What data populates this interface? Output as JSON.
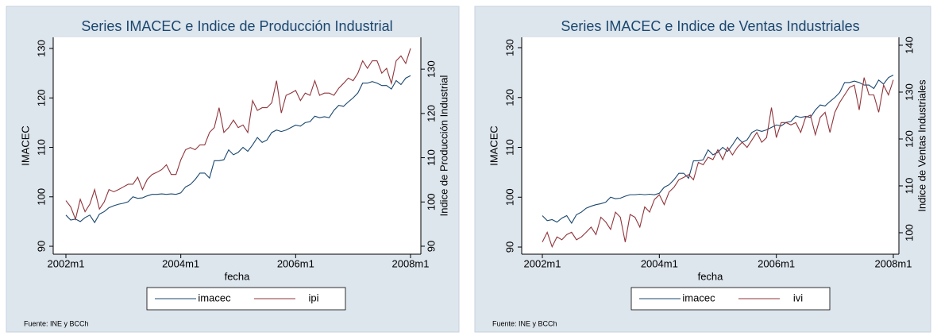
{
  "chart_data": [
    {
      "type": "line",
      "title": "Series IMACEC e Indice de Producción Industrial",
      "ylabel": "IMACEC",
      "y2label": "Indice de Producción Industrial",
      "xlabel": "fecha",
      "note": "Fuente: INE y BCCh",
      "x": [
        "2002m1",
        "2002m2",
        "2002m3",
        "2002m4",
        "2002m5",
        "2002m6",
        "2002m7",
        "2002m8",
        "2002m9",
        "2002m10",
        "2002m11",
        "2002m12",
        "2003m1",
        "2003m2",
        "2003m3",
        "2003m4",
        "2003m5",
        "2003m6",
        "2003m7",
        "2003m8",
        "2003m9",
        "2003m10",
        "2003m11",
        "2003m12",
        "2004m1",
        "2004m2",
        "2004m3",
        "2004m4",
        "2004m5",
        "2004m6",
        "2004m7",
        "2004m8",
        "2004m9",
        "2004m10",
        "2004m11",
        "2004m12",
        "2005m1",
        "2005m2",
        "2005m3",
        "2005m4",
        "2005m5",
        "2005m6",
        "2005m7",
        "2005m8",
        "2005m9",
        "2005m10",
        "2005m11",
        "2005m12",
        "2006m1",
        "2006m2",
        "2006m3",
        "2006m4",
        "2006m5",
        "2006m6",
        "2006m7",
        "2006m8",
        "2006m9",
        "2006m10",
        "2006m11",
        "2006m12",
        "2007m1",
        "2007m2",
        "2007m3",
        "2007m4",
        "2007m5",
        "2007m6",
        "2007m7",
        "2007m8",
        "2007m9",
        "2007m10",
        "2007m11",
        "2007m12",
        "2008m1"
      ],
      "xticks": [
        "2002m1",
        "2004m1",
        "2006m1",
        "2008m1"
      ],
      "ylim": [
        88.4,
        132.25
      ],
      "yticks": [
        90,
        100,
        110,
        120,
        130
      ],
      "y2lim": [
        88.2,
        137.2
      ],
      "y2ticks": [
        90,
        100,
        110,
        120,
        130
      ],
      "series": [
        {
          "name": "imacec",
          "color": "#1a476f",
          "values": [
            96.3,
            95.3,
            95.5,
            95.0,
            95.8,
            96.3,
            94.8,
            96.5,
            97.0,
            97.8,
            98.2,
            98.5,
            98.7,
            99.0,
            100.0,
            99.7,
            99.8,
            100.2,
            100.5,
            100.5,
            100.6,
            100.5,
            100.6,
            100.5,
            100.8,
            102.0,
            102.5,
            103.5,
            104.8,
            104.8,
            103.8,
            107.3,
            107.3,
            107.5,
            109.5,
            108.5,
            109.0,
            110.0,
            109.2,
            110.5,
            112.0,
            111.0,
            111.5,
            113.0,
            113.5,
            113.2,
            113.5,
            114.0,
            114.5,
            114.3,
            115.0,
            115.2,
            116.3,
            116.0,
            116.2,
            116.0,
            117.5,
            118.5,
            118.3,
            119.2,
            120.0,
            121.0,
            123.0,
            123.0,
            123.3,
            123.0,
            122.5,
            122.5,
            121.8,
            123.5,
            122.7,
            124.0,
            124.5
          ]
        },
        {
          "name": "ipi",
          "color": "#90353b",
          "axis": "y2",
          "values": [
            100.3,
            98.9,
            96.1,
            100.6,
            97.8,
            99.5,
            102.8,
            98.4,
            100.0,
            102.8,
            102.3,
            102.8,
            103.4,
            104.0,
            104.0,
            105.6,
            102.8,
            105.1,
            106.2,
            106.7,
            107.3,
            108.4,
            106.2,
            106.2,
            109.5,
            111.8,
            112.3,
            111.8,
            112.9,
            112.9,
            115.7,
            116.8,
            121.3,
            115.7,
            116.8,
            118.5,
            116.8,
            117.4,
            115.7,
            122.9,
            120.7,
            121.3,
            121.3,
            122.4,
            127.4,
            120.1,
            124.1,
            124.6,
            125.2,
            122.9,
            124.6,
            124.1,
            127.4,
            124.1,
            124.6,
            124.6,
            124.1,
            125.7,
            126.8,
            128.0,
            127.4,
            129.1,
            131.9,
            130.2,
            131.9,
            131.9,
            129.1,
            130.2,
            126.8,
            131.9,
            133.0,
            131.3,
            134.7
          ]
        }
      ]
    },
    {
      "type": "line",
      "title": "Series IMACEC e Indice de Ventas Industriales",
      "ylabel": "IMACEC",
      "y2label": "Indice de Ventas Industriales",
      "xlabel": "fecha",
      "note": "Fuente: INE y BCCh",
      "x": [
        "2002m1",
        "2002m2",
        "2002m3",
        "2002m4",
        "2002m5",
        "2002m6",
        "2002m7",
        "2002m8",
        "2002m9",
        "2002m10",
        "2002m11",
        "2002m12",
        "2003m1",
        "2003m2",
        "2003m3",
        "2003m4",
        "2003m5",
        "2003m6",
        "2003m7",
        "2003m8",
        "2003m9",
        "2003m10",
        "2003m11",
        "2003m12",
        "2004m1",
        "2004m2",
        "2004m3",
        "2004m4",
        "2004m5",
        "2004m6",
        "2004m7",
        "2004m8",
        "2004m9",
        "2004m10",
        "2004m11",
        "2004m12",
        "2005m1",
        "2005m2",
        "2005m3",
        "2005m4",
        "2005m5",
        "2005m6",
        "2005m7",
        "2005m8",
        "2005m9",
        "2005m10",
        "2005m11",
        "2005m12",
        "2006m1",
        "2006m2",
        "2006m3",
        "2006m4",
        "2006m5",
        "2006m6",
        "2006m7",
        "2006m8",
        "2006m9",
        "2006m10",
        "2006m11",
        "2006m12",
        "2007m1",
        "2007m2",
        "2007m3",
        "2007m4",
        "2007m5",
        "2007m6",
        "2007m7",
        "2007m8",
        "2007m9",
        "2007m10",
        "2007m11",
        "2007m12",
        "2008m1"
      ],
      "xticks": [
        "2002m1",
        "2004m1",
        "2006m1",
        "2008m1"
      ],
      "ylim": [
        88.57,
        132.07
      ],
      "yticks": [
        90,
        100,
        110,
        120,
        130
      ],
      "y2lim": [
        95.42,
        141.69
      ],
      "y2ticks": [
        100,
        110,
        120,
        130,
        140
      ],
      "series": [
        {
          "name": "imacec",
          "color": "#1a476f",
          "values": [
            96.3,
            95.3,
            95.5,
            95.0,
            95.8,
            96.3,
            94.8,
            96.5,
            97.0,
            97.8,
            98.2,
            98.5,
            98.7,
            99.0,
            100.0,
            99.7,
            99.8,
            100.2,
            100.5,
            100.5,
            100.6,
            100.5,
            100.6,
            100.5,
            100.8,
            102.0,
            102.5,
            103.5,
            104.8,
            104.8,
            103.8,
            107.3,
            107.3,
            107.5,
            109.5,
            108.5,
            109.0,
            110.0,
            109.2,
            110.5,
            112.0,
            111.0,
            111.5,
            113.0,
            113.5,
            113.2,
            113.5,
            114.0,
            114.5,
            114.3,
            115.0,
            115.2,
            116.3,
            116.0,
            116.2,
            116.0,
            117.5,
            118.5,
            118.3,
            119.2,
            120.0,
            121.0,
            123.0,
            123.0,
            123.3,
            123.0,
            122.5,
            122.5,
            121.8,
            123.5,
            122.7,
            124.0,
            124.5
          ]
        },
        {
          "name": "ivi",
          "color": "#90353b",
          "axis": "y2",
          "values": [
            98.0,
            100.1,
            97.0,
            99.1,
            98.5,
            99.6,
            100.1,
            98.5,
            99.1,
            100.1,
            101.2,
            99.6,
            103.3,
            102.3,
            100.7,
            104.4,
            103.3,
            98.0,
            103.9,
            103.3,
            101.2,
            105.5,
            104.4,
            107.1,
            108.1,
            106.0,
            108.7,
            109.7,
            111.3,
            111.8,
            112.4,
            111.3,
            115.0,
            114.5,
            116.1,
            115.6,
            117.7,
            115.6,
            118.2,
            116.6,
            118.2,
            119.3,
            118.2,
            119.8,
            121.4,
            119.3,
            120.3,
            126.7,
            120.3,
            123.5,
            123.5,
            123.0,
            123.5,
            121.4,
            124.6,
            125.1,
            120.9,
            124.6,
            125.7,
            121.4,
            125.7,
            127.8,
            129.4,
            131.0,
            131.5,
            126.2,
            133.1,
            129.4,
            129.4,
            125.7,
            131.5,
            129.4,
            132.6
          ]
        }
      ]
    }
  ]
}
